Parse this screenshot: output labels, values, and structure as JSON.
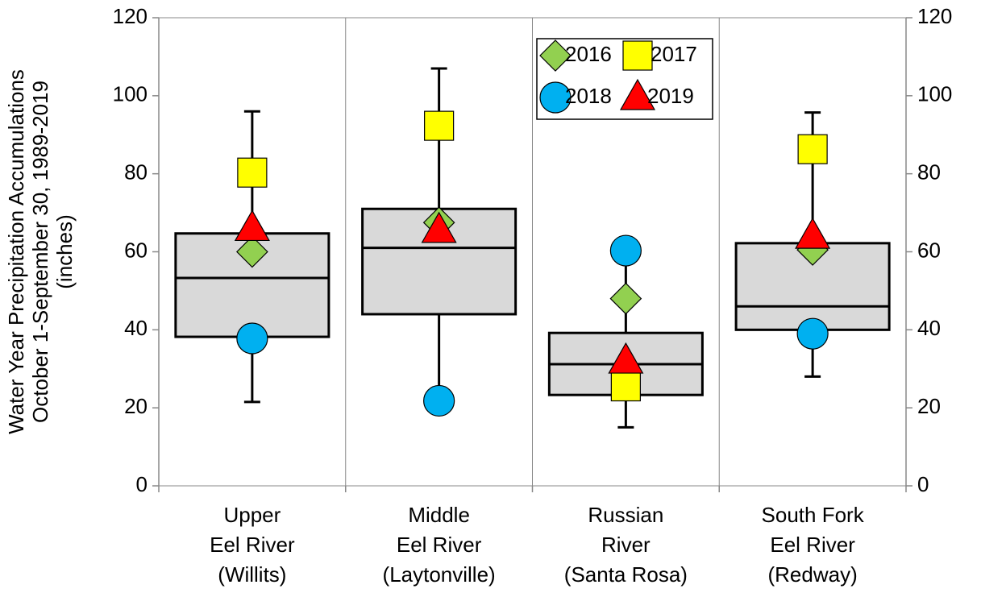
{
  "chart_data": {
    "type": "box",
    "y_label": [
      "Water Year Precipitation Accumulations",
      "October 1-September 30, 1989-2019",
      "(inches)"
    ],
    "categories": [
      [
        "Upper",
        "Eel River",
        "(Willits)"
      ],
      [
        "Middle",
        "Eel River",
        "(Laytonville)"
      ],
      [
        "Russian",
        "River",
        "(Santa Rosa)"
      ],
      [
        "South Fork",
        "Eel River",
        "(Redway)"
      ]
    ],
    "boxes": [
      {
        "low": 21.5,
        "q1": 38.2,
        "median": 53.3,
        "q3": 64.7,
        "high": 96
      },
      {
        "low": 22,
        "q1": 44,
        "median": 61,
        "q3": 71,
        "high": 107
      },
      {
        "low": 15,
        "q1": 23.3,
        "median": 31.2,
        "q3": 39.2,
        "high": 60
      },
      {
        "low": 28,
        "q1": 40,
        "median": 46,
        "q3": 62.2,
        "high": 95.7
      }
    ],
    "box_color": "#d9d9d9",
    "series": [
      {
        "name": "2016",
        "color": "#92d050",
        "marker": "diamond",
        "values": [
          60,
          67.5,
          48,
          60.5
        ]
      },
      {
        "name": "2017",
        "color": "#ffff00",
        "marker": "square",
        "values": [
          80.3,
          92.3,
          25.5,
          86.3
        ]
      },
      {
        "name": "2018",
        "color": "#00b0f0",
        "marker": "circle",
        "values": [
          37.8,
          21.8,
          60.3,
          39
        ]
      },
      {
        "name": "2019",
        "color": "#ff0000",
        "marker": "triangle",
        "values": [
          66,
          65.5,
          32,
          64
        ]
      }
    ],
    "ylim": [
      0,
      120
    ],
    "yticks": [
      0,
      20,
      40,
      60,
      80,
      100,
      120
    ],
    "y2lim": [
      0,
      120
    ],
    "y2ticks": [
      0,
      20,
      40,
      60,
      80,
      100,
      120
    ]
  }
}
